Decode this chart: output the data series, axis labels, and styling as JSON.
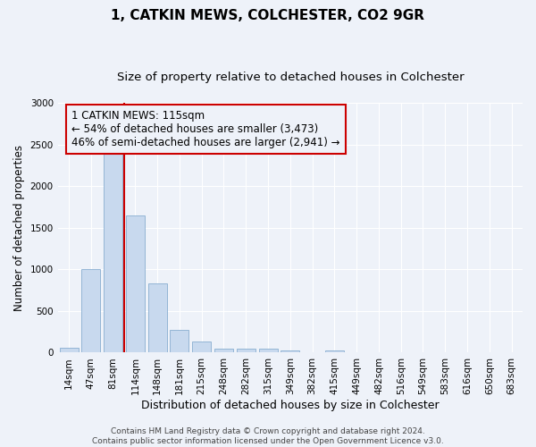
{
  "title": "1, CATKIN MEWS, COLCHESTER, CO2 9GR",
  "subtitle": "Size of property relative to detached houses in Colchester",
  "xlabel": "Distribution of detached houses by size in Colchester",
  "ylabel": "Number of detached properties",
  "bin_labels": [
    "14sqm",
    "47sqm",
    "81sqm",
    "114sqm",
    "148sqm",
    "181sqm",
    "215sqm",
    "248sqm",
    "282sqm",
    "315sqm",
    "349sqm",
    "382sqm",
    "415sqm",
    "449sqm",
    "482sqm",
    "516sqm",
    "549sqm",
    "583sqm",
    "616sqm",
    "650sqm",
    "683sqm"
  ],
  "bar_values": [
    55,
    1000,
    2470,
    1650,
    835,
    270,
    130,
    50,
    50,
    45,
    30,
    0,
    25,
    0,
    0,
    0,
    0,
    0,
    0,
    0,
    0
  ],
  "bar_color": "#c8d9ee",
  "bar_edge_color": "#88aed0",
  "vline_x_index": 3,
  "vline_color": "#cc0000",
  "annotation_line1": "1 CATKIN MEWS: 115sqm",
  "annotation_line2": "← 54% of detached houses are smaller (3,473)",
  "annotation_line3": "46% of semi-detached houses are larger (2,941) →",
  "annotation_box_color": "#cc0000",
  "ylim": [
    0,
    3000
  ],
  "yticks": [
    0,
    500,
    1000,
    1500,
    2000,
    2500,
    3000
  ],
  "footer_line1": "Contains HM Land Registry data © Crown copyright and database right 2024.",
  "footer_line2": "Contains public sector information licensed under the Open Government Licence v3.0.",
  "background_color": "#eef2f9",
  "grid_color": "#ffffff",
  "title_fontsize": 11,
  "subtitle_fontsize": 9.5,
  "xlabel_fontsize": 9,
  "ylabel_fontsize": 8.5,
  "tick_fontsize": 7.5,
  "annotation_fontsize": 8.5,
  "footer_fontsize": 6.5
}
